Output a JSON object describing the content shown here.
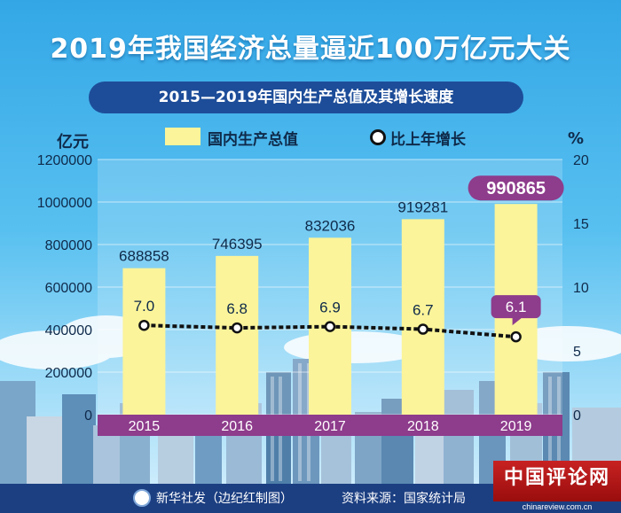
{
  "header": {
    "title": "2019年我国经济总量逼近100万亿元大关",
    "subtitle": "2015—2019年国内生产总值及其增长速度"
  },
  "legend": {
    "bar_label": "国内生产总值",
    "line_label": "比上年增长"
  },
  "axes": {
    "left_unit": "亿元",
    "right_unit": "%"
  },
  "footer": {
    "credit": "新华社发（边纪红制图）",
    "source": "资料来源：国家统计局"
  },
  "watermark": {
    "name": "中国评论网",
    "url": "chinareview.com.cn"
  },
  "colors": {
    "bar": "#fbf49a",
    "bar_label_bg": "#8e3c8c",
    "line": "#111111",
    "title_bar": "#1d4d99"
  },
  "chart_data": {
    "type": "bar",
    "categories": [
      "2015",
      "2016",
      "2017",
      "2018",
      "2019"
    ],
    "series": [
      {
        "name": "国内生产总值",
        "type": "bar",
        "axis": "left",
        "values": [
          688858,
          746395,
          832036,
          919281,
          990865
        ]
      },
      {
        "name": "比上年增长",
        "type": "line",
        "axis": "right",
        "values": [
          7.0,
          6.8,
          6.9,
          6.7,
          6.1
        ],
        "labels": [
          "7.0",
          "6.8",
          "6.9",
          "6.7",
          "6.1"
        ]
      }
    ],
    "bar_labels": [
      "688858",
      "746395",
      "832036",
      "919281",
      "990865"
    ],
    "ylim": [
      0,
      1200000
    ],
    "yticks": [
      "0",
      "200000",
      "400000",
      "600000",
      "800000",
      "1000000",
      "1200000"
    ],
    "y2lim": [
      0,
      20
    ],
    "y2ticks": [
      "0",
      "5",
      "10",
      "15",
      "20"
    ],
    "highlight_index": 4,
    "grid": true
  }
}
